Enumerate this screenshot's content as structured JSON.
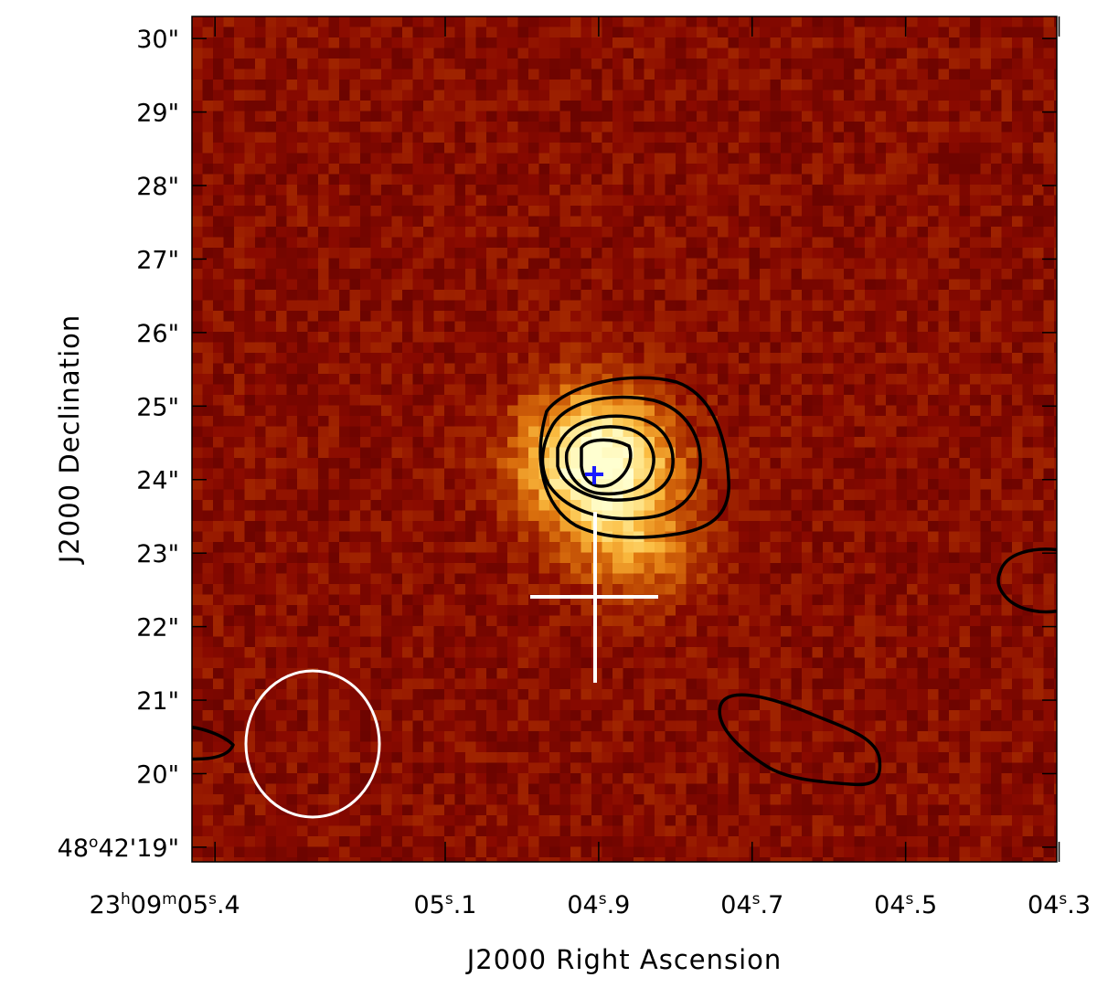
{
  "figure": {
    "x_axis_title": "J2000 Right Ascension",
    "y_axis_title": "J2000 Declination",
    "colormap": [
      "#5a0000",
      "#8a0a00",
      "#b33a00",
      "#e07810",
      "#fbbc40",
      "#ffe890",
      "#ffffd0"
    ],
    "contour_color": "#000000",
    "marker_color": "#ffffff",
    "beam_color": "#ffffff",
    "peak_marker_color": "#1a1aff",
    "ra_ticks": [
      {
        "ra_s": 5.4,
        "label_main": "23",
        "sup_h": "h",
        "label_mid": "09",
        "sup_m": "m",
        "label_sec": "05",
        "sup_s": "s",
        "label_frac": ".4"
      },
      {
        "ra_s": 5.1,
        "label_sec": "05",
        "sup_s": "s",
        "label_frac": ".1"
      },
      {
        "ra_s": 4.9,
        "label_sec": "04",
        "sup_s": "s",
        "label_frac": ".9"
      },
      {
        "ra_s": 4.7,
        "label_sec": "04",
        "sup_s": "s",
        "label_frac": ".7"
      },
      {
        "ra_s": 4.5,
        "label_sec": "04",
        "sup_s": "s",
        "label_frac": ".5"
      },
      {
        "ra_s": 4.3,
        "label_sec": "04",
        "sup_s": "s",
        "label_frac": ".3"
      }
    ],
    "dec_ticks": [
      {
        "dec_arcsec": 30,
        "label": "30\""
      },
      {
        "dec_arcsec": 29,
        "label": "29\""
      },
      {
        "dec_arcsec": 28,
        "label": "28\""
      },
      {
        "dec_arcsec": 27,
        "label": "27\""
      },
      {
        "dec_arcsec": 26,
        "label": "26\""
      },
      {
        "dec_arcsec": 25,
        "label": "25\""
      },
      {
        "dec_arcsec": 24,
        "label": "24\""
      },
      {
        "dec_arcsec": 23,
        "label": "23\""
      },
      {
        "dec_arcsec": 22,
        "label": "22\""
      },
      {
        "dec_arcsec": 21,
        "label": "21\""
      },
      {
        "dec_arcsec": 20,
        "label": "20\""
      },
      {
        "dec_arcsec": 19,
        "label_deg": "48",
        "sup_deg": "o",
        "label_rest": "42'19\""
      }
    ]
  }
}
